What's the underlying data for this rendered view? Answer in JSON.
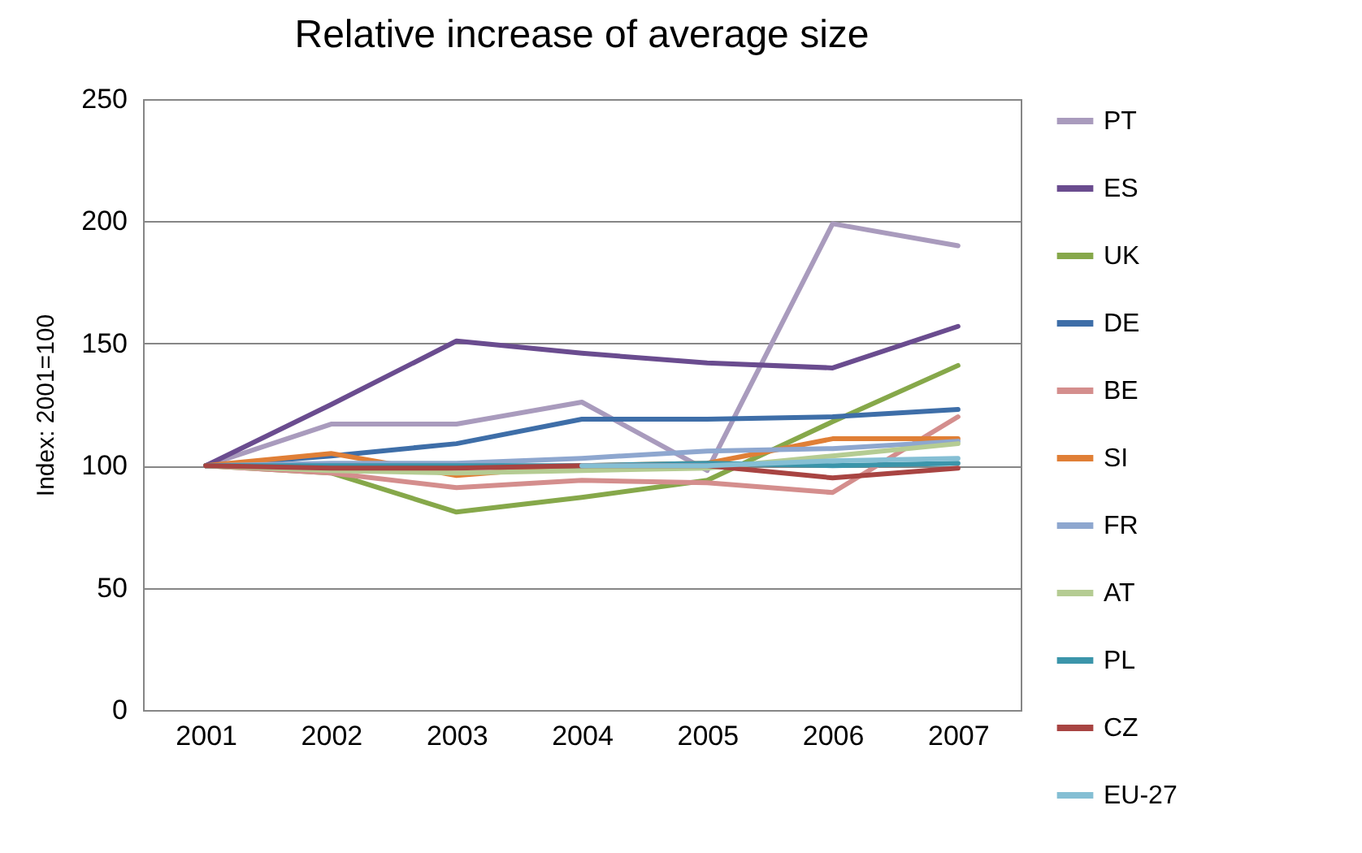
{
  "chart_data": {
    "type": "line",
    "title": "Relative increase of average size",
    "ylabel": "Index: 2001=100",
    "categories": [
      "2001",
      "2002",
      "2003",
      "2004",
      "2005",
      "2006",
      "2007"
    ],
    "ylim": [
      0,
      250
    ],
    "yticks": [
      0,
      50,
      100,
      150,
      200,
      250
    ],
    "grid": "y",
    "legend": "right",
    "marker": "none",
    "line_style": "solid",
    "series": [
      {
        "name": "PT",
        "color": "#a99bbd",
        "values": [
          100,
          117,
          117,
          126,
          98,
          199,
          190
        ]
      },
      {
        "name": "ES",
        "color": "#6a4c8f",
        "values": [
          100,
          125,
          151,
          146,
          142,
          140,
          157
        ]
      },
      {
        "name": "UK",
        "color": "#86a84a",
        "values": [
          100,
          97,
          81,
          87,
          94,
          118,
          141
        ]
      },
      {
        "name": "DE",
        "color": "#3e6ea8",
        "values": [
          100,
          104,
          109,
          119,
          119,
          120,
          123
        ]
      },
      {
        "name": "BE",
        "color": "#d48e8d",
        "values": [
          100,
          97,
          91,
          94,
          93,
          89,
          120
        ]
      },
      {
        "name": "SI",
        "color": "#e07f36",
        "values": [
          100,
          105,
          96,
          100,
          101,
          111,
          111
        ]
      },
      {
        "name": "FR",
        "color": "#8ea7cf",
        "values": [
          100,
          101,
          101,
          103,
          106,
          107,
          110
        ]
      },
      {
        "name": "AT",
        "color": "#b5cc93",
        "values": [
          100,
          98,
          97,
          98,
          99,
          104,
          109
        ]
      },
      {
        "name": "PL",
        "color": "#3b95aa",
        "values": [
          100,
          100,
          100,
          100,
          101,
          100,
          101
        ]
      },
      {
        "name": "CZ",
        "color": "#a84442",
        "values": [
          100,
          99,
          99,
          100,
          100,
          95,
          99
        ]
      },
      {
        "name": "EU-27",
        "color": "#85bfd4",
        "values": [
          null,
          null,
          null,
          100,
          100,
          102,
          103
        ]
      }
    ]
  }
}
